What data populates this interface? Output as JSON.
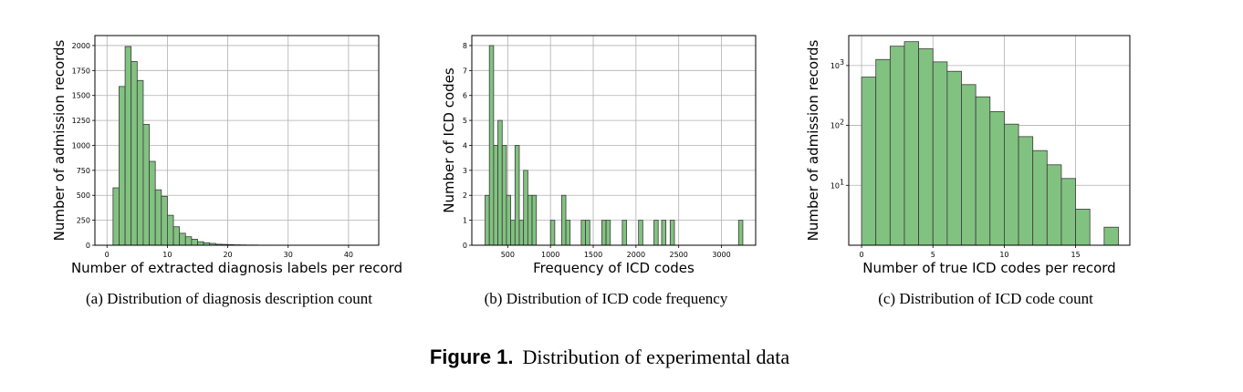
{
  "figure": {
    "number": "Figure 1.",
    "title": "Distribution of experimental data"
  },
  "style": {
    "bar_fill": "#82c281",
    "bar_edge": "#3a3a3a",
    "grid": "#b0b0b0"
  },
  "chart_data": [
    {
      "type": "bar",
      "caption": "(a)  Distribution of diagnosis description count",
      "xlabel": "Number of extracted diagnosis labels per record",
      "ylabel": "Number of admission records",
      "xlim": [
        -2,
        45
      ],
      "ylim": [
        0,
        2100
      ],
      "xticks": [
        0,
        10,
        20,
        30,
        40
      ],
      "xtick_labels": [
        "0",
        "10",
        "20",
        "30",
        "40"
      ],
      "yticks": [
        0,
        250,
        500,
        750,
        1000,
        1250,
        1500,
        1750,
        2000
      ],
      "ytick_labels": [
        "0",
        "250",
        "500",
        "750",
        "1000",
        "1250",
        "1500",
        "1750",
        "2000"
      ],
      "grid": true,
      "y_scale": "linear",
      "bins": [
        [
          1,
          2,
          575
        ],
        [
          2,
          3,
          1590
        ],
        [
          3,
          4,
          1990
        ],
        [
          4,
          5,
          1840
        ],
        [
          5,
          6,
          1650
        ],
        [
          6,
          7,
          1210
        ],
        [
          7,
          8,
          840
        ],
        [
          8,
          9,
          555
        ],
        [
          9,
          10,
          490
        ],
        [
          10,
          11,
          300
        ],
        [
          11,
          12,
          185
        ],
        [
          12,
          13,
          120
        ],
        [
          13,
          14,
          85
        ],
        [
          14,
          15,
          60
        ],
        [
          15,
          16,
          35
        ],
        [
          16,
          17,
          25
        ],
        [
          17,
          18,
          18
        ],
        [
          18,
          19,
          10
        ],
        [
          19,
          20,
          8
        ],
        [
          20,
          21,
          6
        ],
        [
          21,
          22,
          4
        ],
        [
          22,
          23,
          3
        ],
        [
          23,
          24,
          2
        ],
        [
          24,
          25,
          2
        ],
        [
          25,
          26,
          1
        ],
        [
          26,
          27,
          1
        ],
        [
          27,
          28,
          1
        ],
        [
          28,
          29,
          1
        ]
      ]
    },
    {
      "type": "bar",
      "caption": "(b)  Distribution of ICD code frequency",
      "xlabel": "Frequency of ICD codes",
      "ylabel": "Number of ICD codes",
      "xlim": [
        80,
        3400
      ],
      "ylim": [
        0,
        8.4
      ],
      "xticks": [
        500,
        1000,
        1500,
        2000,
        2500,
        3000
      ],
      "xtick_labels": [
        "500",
        "1000",
        "1500",
        "2000",
        "2500",
        "3000"
      ],
      "yticks": [
        0,
        1,
        2,
        3,
        4,
        5,
        6,
        7,
        8
      ],
      "ytick_labels": [
        "0",
        "1",
        "2",
        "3",
        "4",
        "5",
        "6",
        "7",
        "8"
      ],
      "grid": true,
      "y_scale": "linear",
      "bins": [
        [
          235,
          285,
          2
        ],
        [
          285,
          335,
          8
        ],
        [
          335,
          385,
          4
        ],
        [
          385,
          435,
          5
        ],
        [
          435,
          485,
          4
        ],
        [
          485,
          535,
          2
        ],
        [
          535,
          585,
          1
        ],
        [
          585,
          635,
          4
        ],
        [
          635,
          685,
          1
        ],
        [
          685,
          735,
          3
        ],
        [
          735,
          785,
          2
        ],
        [
          785,
          835,
          2
        ],
        [
          1000,
          1050,
          1
        ],
        [
          1130,
          1180,
          2
        ],
        [
          1180,
          1230,
          1
        ],
        [
          1360,
          1410,
          1
        ],
        [
          1410,
          1460,
          1
        ],
        [
          1600,
          1650,
          1
        ],
        [
          1650,
          1700,
          1
        ],
        [
          1840,
          1890,
          1
        ],
        [
          2030,
          2080,
          1
        ],
        [
          2210,
          2260,
          1
        ],
        [
          2300,
          2350,
          1
        ],
        [
          2400,
          2450,
          1
        ],
        [
          3200,
          3250,
          1
        ]
      ]
    },
    {
      "type": "bar",
      "caption": "(c)  Distribution of ICD code count",
      "xlabel": "Number of true ICD codes per record",
      "ylabel": "Number of admission records",
      "xlim": [
        -0.9,
        18.8
      ],
      "ylim_log10": [
        0,
        3.5
      ],
      "xticks": [
        0,
        5,
        10,
        15
      ],
      "xtick_labels": [
        "0",
        "5",
        "10",
        "15"
      ],
      "yticks_log10": [
        1,
        2,
        3
      ],
      "ytick_labels": [
        "10",
        "10",
        "10"
      ],
      "ytick_exponents": [
        "1",
        "2",
        "3"
      ],
      "grid": true,
      "y_scale": "log",
      "bins": [
        [
          0,
          1,
          640
        ],
        [
          1,
          2,
          1260
        ],
        [
          2,
          3,
          2100
        ],
        [
          3,
          4,
          2500
        ],
        [
          4,
          5,
          1900
        ],
        [
          5,
          6,
          1150
        ],
        [
          6,
          7,
          800
        ],
        [
          7,
          8,
          480
        ],
        [
          8,
          9,
          300
        ],
        [
          9,
          10,
          170
        ],
        [
          10,
          11,
          105
        ],
        [
          11,
          12,
          65
        ],
        [
          12,
          13,
          38
        ],
        [
          13,
          14,
          22
        ],
        [
          14,
          15,
          13
        ],
        [
          15,
          16,
          4
        ],
        [
          17,
          18,
          2
        ]
      ]
    }
  ]
}
